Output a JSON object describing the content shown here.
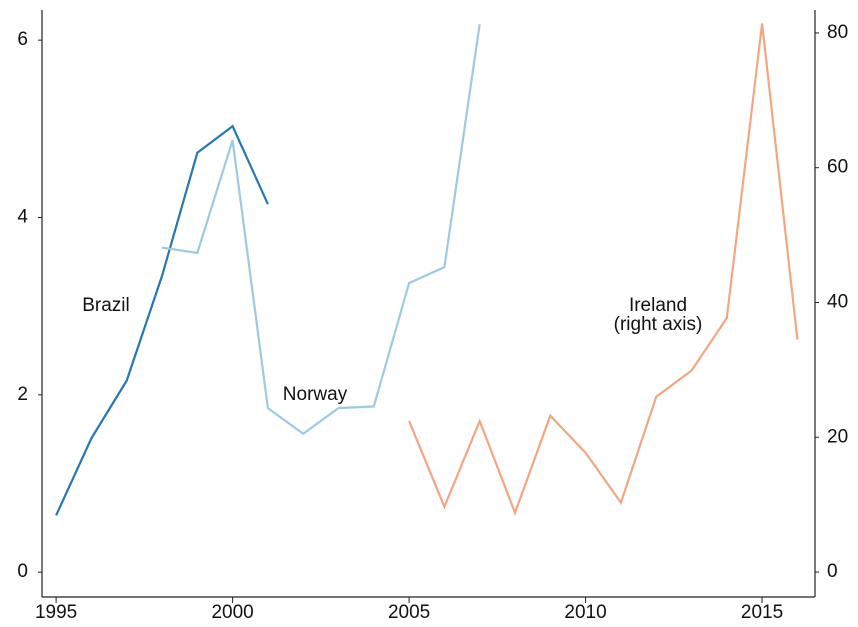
{
  "chart_data": {
    "type": "line",
    "x": [
      1995,
      1996,
      1997,
      1998,
      1999,
      2000,
      2001,
      2002,
      2003,
      2004,
      2005,
      2006,
      2007,
      2008,
      2009,
      2010,
      2011,
      2012,
      2013,
      2014,
      2015,
      2016
    ],
    "series": [
      {
        "name": "Brazil",
        "color": "#2878b0",
        "values": [
          0.64,
          1.51,
          2.16,
          3.34,
          4.73,
          5.03,
          4.15,
          null,
          null,
          null,
          null,
          null,
          null,
          null,
          null,
          null,
          null,
          null,
          null,
          null,
          null,
          null
        ]
      },
      {
        "name": "Norway",
        "color": "#9ecae1",
        "values": [
          null,
          null,
          null,
          3.66,
          3.6,
          4.87,
          1.85,
          1.56,
          1.85,
          1.87,
          3.26,
          3.44,
          6.18,
          null,
          null,
          null,
          null,
          null,
          null,
          null,
          null,
          null
        ]
      },
      {
        "name": "Ireland",
        "color": "#f4a582",
        "axis": "y2",
        "values": [
          null,
          null,
          null,
          null,
          null,
          null,
          null,
          null,
          null,
          null,
          22.4,
          9.7,
          22.4,
          8.8,
          23.2,
          17.7,
          10.3,
          26.0,
          29.9,
          37.7,
          81.4,
          34.5
        ]
      }
    ],
    "annotations": [
      "(right axis)"
    ],
    "xlim": [
      1994.6,
      2016.5
    ],
    "xticks": [
      1995,
      2000,
      2005,
      2010,
      2015
    ],
    "ylim": [
      -0.28,
      6.34
    ],
    "yticks": [
      0,
      2,
      4,
      6
    ],
    "y2lim": [
      -3.7,
      83.4
    ],
    "y2ticks": [
      0,
      20,
      40,
      60,
      80
    ],
    "grid": false
  }
}
